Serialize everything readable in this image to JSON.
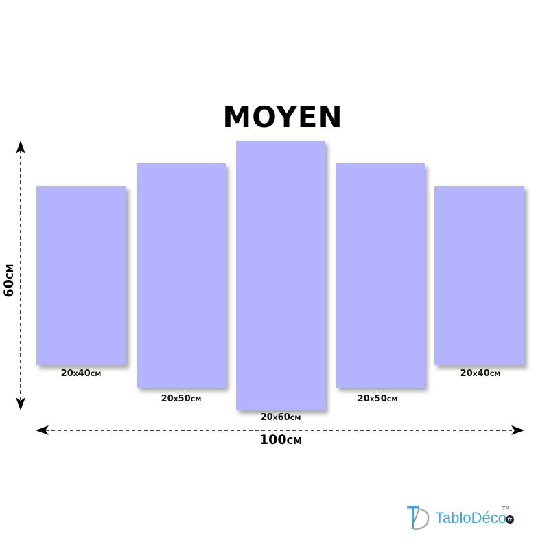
{
  "title": "MOYEN",
  "panels": [
    {
      "label": "20x40cm",
      "width_cm": 20,
      "height_cm": 40
    },
    {
      "label": "20x50cm",
      "width_cm": 20,
      "height_cm": 50
    },
    {
      "label": "20x60cm",
      "width_cm": 20,
      "height_cm": 60
    },
    {
      "label": "20x50cm",
      "width_cm": 20,
      "height_cm": 50
    },
    {
      "label": "20x40cm",
      "width_cm": 20,
      "height_cm": 40
    }
  ],
  "total_height": "60cm",
  "total_width": "100cm",
  "panel_color": "#b3b3fe",
  "logo": {
    "text": "TabloDéco",
    "tm": "TM",
    "tld": "fr",
    "color": "#3aa8dc"
  }
}
